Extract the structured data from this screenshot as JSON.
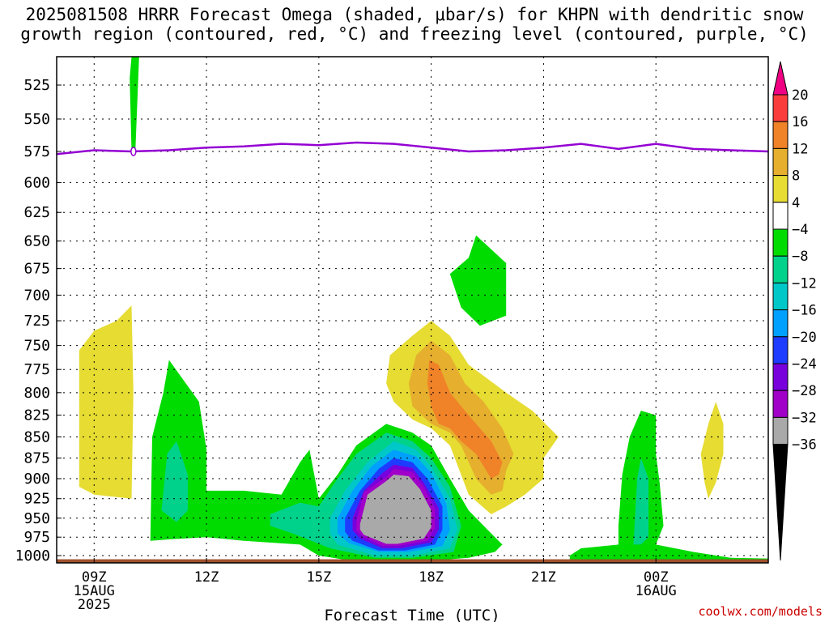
{
  "title_line1": "2025081508 HRRR Forecast Omega (shaded, μbar/s) for KHPN with dendritic snow",
  "title_line2": "growth region (contoured, red, °C) and freezing level (contoured, purple, °C)",
  "watermark": "coolwx.com/models",
  "chart_data": {
    "type": "contour-time-height",
    "xlabel": "Forecast Time (UTC)",
    "x_range_hours_utc": [
      8.0,
      27.0
    ],
    "x_ticks": [
      {
        "hour": 9,
        "lines": [
          "09Z",
          "15AUG",
          "2025"
        ]
      },
      {
        "hour": 12,
        "lines": [
          "12Z"
        ]
      },
      {
        "hour": 15,
        "lines": [
          "15Z"
        ]
      },
      {
        "hour": 18,
        "lines": [
          "18Z"
        ]
      },
      {
        "hour": 21,
        "lines": [
          "21Z"
        ]
      },
      {
        "hour": 24,
        "lines": [
          "00Z",
          "16AUG"
        ]
      }
    ],
    "y_range_mb": [
      1010,
      505
    ],
    "y_ticks": [
      525,
      550,
      575,
      600,
      625,
      650,
      675,
      700,
      725,
      750,
      775,
      800,
      825,
      850,
      875,
      900,
      925,
      950,
      975,
      1000
    ],
    "grid": true,
    "colorbar": {
      "levels": [
        -36,
        -32,
        -28,
        -24,
        -20,
        -16,
        -12,
        -8,
        -4,
        4,
        8,
        12,
        16,
        20
      ],
      "colors": [
        "#000000",
        "#a9a9a9",
        "#a000c8",
        "#7800dc",
        "#1e3cff",
        "#00a0ff",
        "#00c8c8",
        "#00d28c",
        "#00dc00",
        "#ffffff",
        "#e6dc32",
        "#e6af2d",
        "#f08228",
        "#fa3c3c",
        "#f00082"
      ]
    },
    "freezing_level_mb": [
      {
        "t": 8.0,
        "p": 577
      },
      {
        "t": 9.0,
        "p": 574
      },
      {
        "t": 10.0,
        "p": 575
      },
      {
        "t": 11.0,
        "p": 574
      },
      {
        "t": 12.0,
        "p": 572
      },
      {
        "t": 13.0,
        "p": 571
      },
      {
        "t": 14.0,
        "p": 569
      },
      {
        "t": 15.0,
        "p": 570
      },
      {
        "t": 16.0,
        "p": 568
      },
      {
        "t": 17.0,
        "p": 569
      },
      {
        "t": 18.0,
        "p": 572
      },
      {
        "t": 19.0,
        "p": 575
      },
      {
        "t": 20.0,
        "p": 574
      },
      {
        "t": 21.0,
        "p": 572
      },
      {
        "t": 22.0,
        "p": 569
      },
      {
        "t": 23.0,
        "p": 573
      },
      {
        "t": 24.0,
        "p": 569
      },
      {
        "t": 25.0,
        "p": 573
      },
      {
        "t": 26.0,
        "p": 574
      },
      {
        "t": 27.0,
        "p": 575
      }
    ],
    "omega_regions": [
      {
        "level": "4_8",
        "points": [
          [
            8.6,
            910
          ],
          [
            8.6,
            755
          ],
          [
            9.0,
            735
          ],
          [
            9.6,
            725
          ],
          [
            10.0,
            710
          ],
          [
            10.05,
            800
          ],
          [
            10.0,
            925
          ],
          [
            9.0,
            920
          ]
        ]
      },
      {
        "level": "-8_-4",
        "points": [
          [
            10.0,
            505
          ],
          [
            10.2,
            505
          ],
          [
            10.1,
            575
          ],
          [
            10.0,
            575
          ],
          [
            9.95,
            520
          ]
        ]
      },
      {
        "level": "-8_-4",
        "points": [
          [
            10.5,
            980
          ],
          [
            10.55,
            850
          ],
          [
            10.85,
            800
          ],
          [
            11.0,
            765
          ],
          [
            11.8,
            810
          ],
          [
            12.0,
            865
          ],
          [
            12.0,
            915
          ],
          [
            13.0,
            915
          ],
          [
            14.0,
            920
          ],
          [
            14.5,
            880
          ],
          [
            14.75,
            865
          ],
          [
            15.0,
            925
          ],
          [
            15.5,
            895
          ],
          [
            16.0,
            860
          ],
          [
            16.8,
            835
          ],
          [
            17.5,
            845
          ],
          [
            18.0,
            860
          ],
          [
            18.5,
            900
          ],
          [
            19.0,
            940
          ],
          [
            19.5,
            965
          ],
          [
            19.9,
            985
          ],
          [
            19.7,
            995
          ],
          [
            19.0,
            1003
          ],
          [
            18.5,
            1005
          ],
          [
            17.0,
            1008
          ],
          [
            16.0,
            1008
          ],
          [
            15.0,
            1000
          ],
          [
            14.5,
            985
          ],
          [
            13.0,
            980
          ],
          [
            12.0,
            975
          ],
          [
            11.0,
            978
          ]
        ]
      },
      {
        "level": "-12_-8",
        "points": [
          [
            10.8,
            940
          ],
          [
            10.95,
            870
          ],
          [
            11.2,
            855
          ],
          [
            11.5,
            895
          ],
          [
            11.5,
            940
          ],
          [
            11.2,
            955
          ]
        ]
      },
      {
        "level": "-12_-8",
        "points": [
          [
            13.7,
            945
          ],
          [
            14.5,
            930
          ],
          [
            15.0,
            935
          ],
          [
            15.5,
            900
          ],
          [
            16.0,
            870
          ],
          [
            16.8,
            845
          ],
          [
            17.5,
            855
          ],
          [
            18.0,
            875
          ],
          [
            18.5,
            910
          ],
          [
            18.8,
            960
          ],
          [
            18.6,
            995
          ],
          [
            17.5,
            1003
          ],
          [
            16.5,
            1003
          ],
          [
            15.3,
            990
          ],
          [
            14.3,
            970
          ],
          [
            13.7,
            960
          ]
        ]
      },
      {
        "level": "-16_-12",
        "points": [
          [
            15.3,
            950
          ],
          [
            15.7,
            915
          ],
          [
            16.3,
            880
          ],
          [
            17.0,
            855
          ],
          [
            17.6,
            865
          ],
          [
            18.0,
            885
          ],
          [
            18.5,
            925
          ],
          [
            18.7,
            965
          ],
          [
            18.5,
            990
          ],
          [
            17.5,
            1000
          ],
          [
            16.5,
            1000
          ],
          [
            15.5,
            985
          ],
          [
            15.3,
            970
          ]
        ]
      },
      {
        "level": "-20_-16",
        "points": [
          [
            15.5,
            950
          ],
          [
            15.9,
            915
          ],
          [
            16.4,
            885
          ],
          [
            17.0,
            865
          ],
          [
            17.6,
            873
          ],
          [
            18.0,
            893
          ],
          [
            18.4,
            930
          ],
          [
            18.5,
            965
          ],
          [
            18.3,
            987
          ],
          [
            17.4,
            995
          ],
          [
            16.6,
            995
          ],
          [
            15.8,
            983
          ],
          [
            15.5,
            970
          ]
        ]
      },
      {
        "level": "-24_-20",
        "points": [
          [
            15.7,
            950
          ],
          [
            16.1,
            915
          ],
          [
            16.6,
            888
          ],
          [
            17.0,
            875
          ],
          [
            17.5,
            880
          ],
          [
            17.9,
            900
          ],
          [
            18.3,
            935
          ],
          [
            18.3,
            965
          ],
          [
            18.1,
            985
          ],
          [
            17.3,
            993
          ],
          [
            16.6,
            993
          ],
          [
            15.9,
            980
          ],
          [
            15.7,
            968
          ]
        ]
      },
      {
        "level": "-28_-24",
        "points": [
          [
            15.9,
            950
          ],
          [
            16.2,
            915
          ],
          [
            16.7,
            893
          ],
          [
            17.0,
            883
          ],
          [
            17.5,
            887
          ],
          [
            17.8,
            905
          ],
          [
            18.2,
            937
          ],
          [
            18.2,
            965
          ],
          [
            18.0,
            982
          ],
          [
            17.2,
            990
          ],
          [
            16.7,
            990
          ],
          [
            16.1,
            977
          ],
          [
            15.9,
            966
          ]
        ]
      },
      {
        "level": "-32_-28",
        "points": [
          [
            16.0,
            955
          ],
          [
            16.2,
            917
          ],
          [
            16.8,
            898
          ],
          [
            17.0,
            888
          ],
          [
            17.5,
            892
          ],
          [
            17.8,
            910
          ],
          [
            18.1,
            938
          ],
          [
            18.1,
            963
          ],
          [
            17.9,
            980
          ],
          [
            17.1,
            987
          ],
          [
            16.7,
            987
          ],
          [
            16.2,
            975
          ],
          [
            16.0,
            967
          ]
        ]
      },
      {
        "level": "-36_-32",
        "points": [
          [
            16.1,
            958
          ],
          [
            16.3,
            920
          ],
          [
            16.8,
            903
          ],
          [
            17.0,
            895
          ],
          [
            17.4,
            897
          ],
          [
            17.7,
            913
          ],
          [
            18.0,
            940
          ],
          [
            18.0,
            962
          ],
          [
            17.8,
            977
          ],
          [
            17.1,
            984
          ],
          [
            16.8,
            984
          ],
          [
            16.2,
            972
          ],
          [
            16.1,
            965
          ]
        ]
      },
      {
        "level": "-8_-4",
        "points": [
          [
            18.5,
            680
          ],
          [
            19.0,
            665
          ],
          [
            19.2,
            645
          ],
          [
            20.0,
            670
          ],
          [
            20.0,
            720
          ],
          [
            19.3,
            730
          ],
          [
            18.8,
            712
          ]
        ]
      },
      {
        "level": "4_8",
        "points": [
          [
            16.8,
            790
          ],
          [
            16.9,
            760
          ],
          [
            17.5,
            740
          ],
          [
            18.0,
            725
          ],
          [
            18.5,
            740
          ],
          [
            19.0,
            770
          ],
          [
            20.0,
            800
          ],
          [
            20.7,
            820
          ],
          [
            21.4,
            850
          ],
          [
            21.0,
            875
          ],
          [
            21.0,
            900
          ],
          [
            20.5,
            920
          ],
          [
            20.0,
            935
          ],
          [
            19.6,
            945
          ],
          [
            19.0,
            920
          ],
          [
            18.5,
            860
          ],
          [
            18.0,
            840
          ],
          [
            17.5,
            830
          ],
          [
            17.0,
            810
          ]
        ]
      },
      {
        "level": "8_12",
        "points": [
          [
            17.4,
            790
          ],
          [
            17.6,
            760
          ],
          [
            18.0,
            745
          ],
          [
            18.5,
            760
          ],
          [
            18.9,
            790
          ],
          [
            19.4,
            810
          ],
          [
            19.9,
            840
          ],
          [
            20.2,
            870
          ],
          [
            20.0,
            890
          ],
          [
            19.9,
            915
          ],
          [
            19.6,
            920
          ],
          [
            19.2,
            900
          ],
          [
            18.8,
            860
          ],
          [
            18.5,
            845
          ],
          [
            18.0,
            835
          ],
          [
            17.5,
            815
          ]
        ]
      },
      {
        "level": "12_16",
        "points": [
          [
            17.9,
            790
          ],
          [
            17.95,
            765
          ],
          [
            18.2,
            770
          ],
          [
            18.5,
            800
          ],
          [
            18.8,
            815
          ],
          [
            19.2,
            835
          ],
          [
            19.6,
            855
          ],
          [
            19.9,
            880
          ],
          [
            19.8,
            895
          ],
          [
            19.6,
            900
          ],
          [
            19.2,
            870
          ],
          [
            18.8,
            855
          ],
          [
            18.5,
            840
          ],
          [
            18.2,
            835
          ],
          [
            18.0,
            815
          ]
        ]
      },
      {
        "level": "-8_-4",
        "points": [
          [
            21.7,
            1000
          ],
          [
            22.0,
            990
          ],
          [
            23.0,
            985
          ],
          [
            23.0,
            960
          ],
          [
            23.1,
            895
          ],
          [
            23.3,
            850
          ],
          [
            23.6,
            820
          ],
          [
            24.0,
            825
          ],
          [
            24.0,
            870
          ],
          [
            24.1,
            905
          ],
          [
            24.2,
            960
          ],
          [
            24.0,
            985
          ],
          [
            25.0,
            995
          ],
          [
            26.0,
            1003
          ],
          [
            27.0,
            1004
          ],
          [
            27.0,
            1007
          ],
          [
            25.0,
            1007
          ],
          [
            23.0,
            1007
          ],
          [
            21.7,
            1005
          ]
        ]
      },
      {
        "level": "-12_-8",
        "points": [
          [
            23.4,
            985
          ],
          [
            23.5,
            900
          ],
          [
            23.6,
            875
          ],
          [
            23.8,
            900
          ],
          [
            23.8,
            975
          ],
          [
            23.6,
            985
          ]
        ]
      },
      {
        "level": "4_8",
        "points": [
          [
            25.2,
            870
          ],
          [
            25.4,
            835
          ],
          [
            25.6,
            810
          ],
          [
            25.8,
            835
          ],
          [
            25.8,
            870
          ],
          [
            25.6,
            905
          ],
          [
            25.4,
            925
          ],
          [
            25.3,
            905
          ]
        ]
      }
    ],
    "ground": {
      "color": "#a0522d",
      "p_top": 1005
    }
  }
}
